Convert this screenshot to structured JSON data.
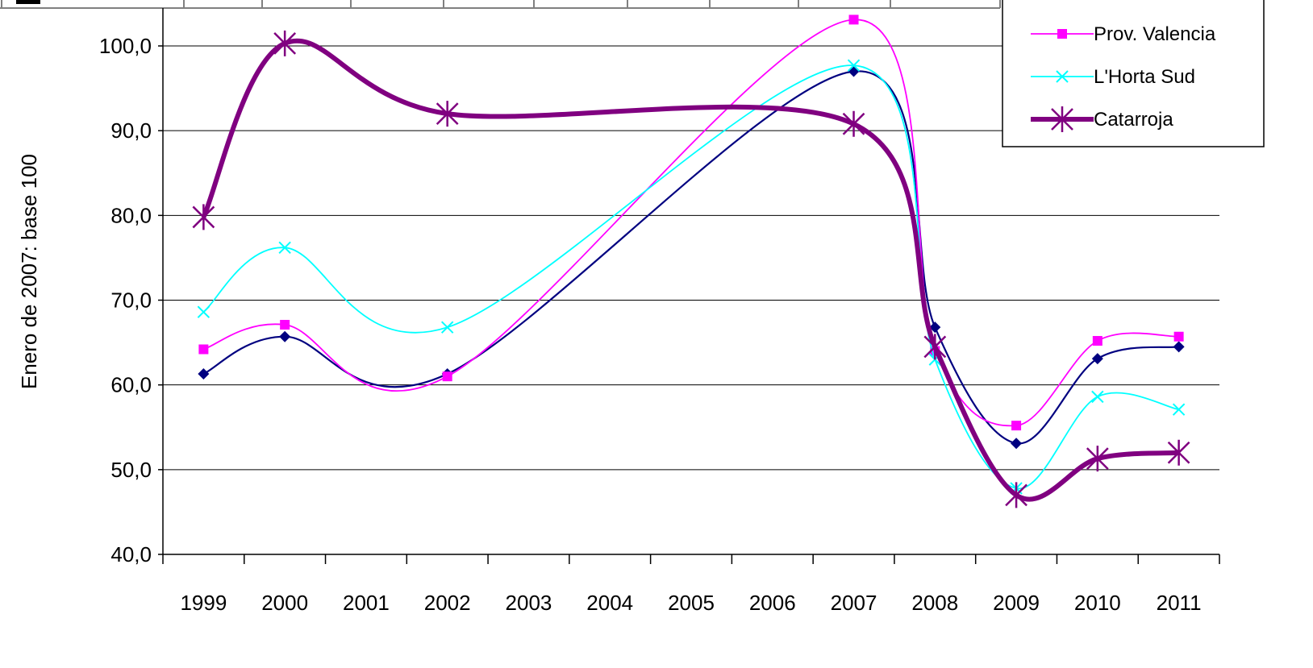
{
  "chart_data": {
    "type": "line",
    "title": "",
    "xlabel": "",
    "ylabel": "Enero de 2007: base 100",
    "ylim": [
      40,
      100
    ],
    "y_ticks": [
      "40,0",
      "50,0",
      "60,0",
      "70,0",
      "80,0",
      "90,0",
      "100,0"
    ],
    "categories": [
      "1999",
      "2000",
      "2001",
      "2002",
      "2003",
      "2004",
      "2005",
      "2006",
      "2007",
      "2008",
      "2009",
      "2010",
      "2011"
    ],
    "grid": "horizontal",
    "legend_position": "top-right",
    "series": [
      {
        "name": "",
        "color": "#000080",
        "marker": "diamond",
        "points": [
          {
            "x": 1999.5,
            "y": 61.3
          },
          {
            "x": 2000.5,
            "y": 65.7
          },
          {
            "x": 2002.5,
            "y": 61.3
          },
          {
            "x": 2007.5,
            "y": 97.0
          },
          {
            "x": 2008.5,
            "y": 66.8
          },
          {
            "x": 2009.5,
            "y": 53.1
          },
          {
            "x": 2010.5,
            "y": 63.1
          },
          {
            "x": 2011.5,
            "y": 64.5
          }
        ]
      },
      {
        "name": "Prov. Valencia",
        "color": "#ff00ff",
        "marker": "square",
        "points": [
          {
            "x": 1999.5,
            "y": 64.2
          },
          {
            "x": 2000.5,
            "y": 67.1
          },
          {
            "x": 2002.5,
            "y": 61.0
          },
          {
            "x": 2007.5,
            "y": 103.1
          },
          {
            "x": 2008.5,
            "y": 64.0
          },
          {
            "x": 2009.5,
            "y": 55.2
          },
          {
            "x": 2010.5,
            "y": 65.2
          },
          {
            "x": 2011.5,
            "y": 65.7
          }
        ]
      },
      {
        "name": "L'Horta Sud",
        "color": "#00ffff",
        "marker": "x",
        "points": [
          {
            "x": 1999.5,
            "y": 68.6
          },
          {
            "x": 2000.5,
            "y": 76.2
          },
          {
            "x": 2002.5,
            "y": 66.8
          },
          {
            "x": 2007.5,
            "y": 97.7
          },
          {
            "x": 2008.5,
            "y": 63.0
          },
          {
            "x": 2009.5,
            "y": 47.8
          },
          {
            "x": 2010.5,
            "y": 58.6
          },
          {
            "x": 2011.5,
            "y": 57.1
          }
        ]
      },
      {
        "name": "Catarroja",
        "color": "#800080",
        "marker": "star",
        "points": [
          {
            "x": 1999.5,
            "y": 79.8
          },
          {
            "x": 2000.5,
            "y": 100.3
          },
          {
            "x": 2002.5,
            "y": 92.0
          },
          {
            "x": 2007.5,
            "y": 90.8
          },
          {
            "x": 2008.5,
            "y": 64.5
          },
          {
            "x": 2009.5,
            "y": 47.0
          },
          {
            "x": 2010.5,
            "y": 51.3
          },
          {
            "x": 2011.5,
            "y": 52.0
          }
        ]
      }
    ]
  }
}
